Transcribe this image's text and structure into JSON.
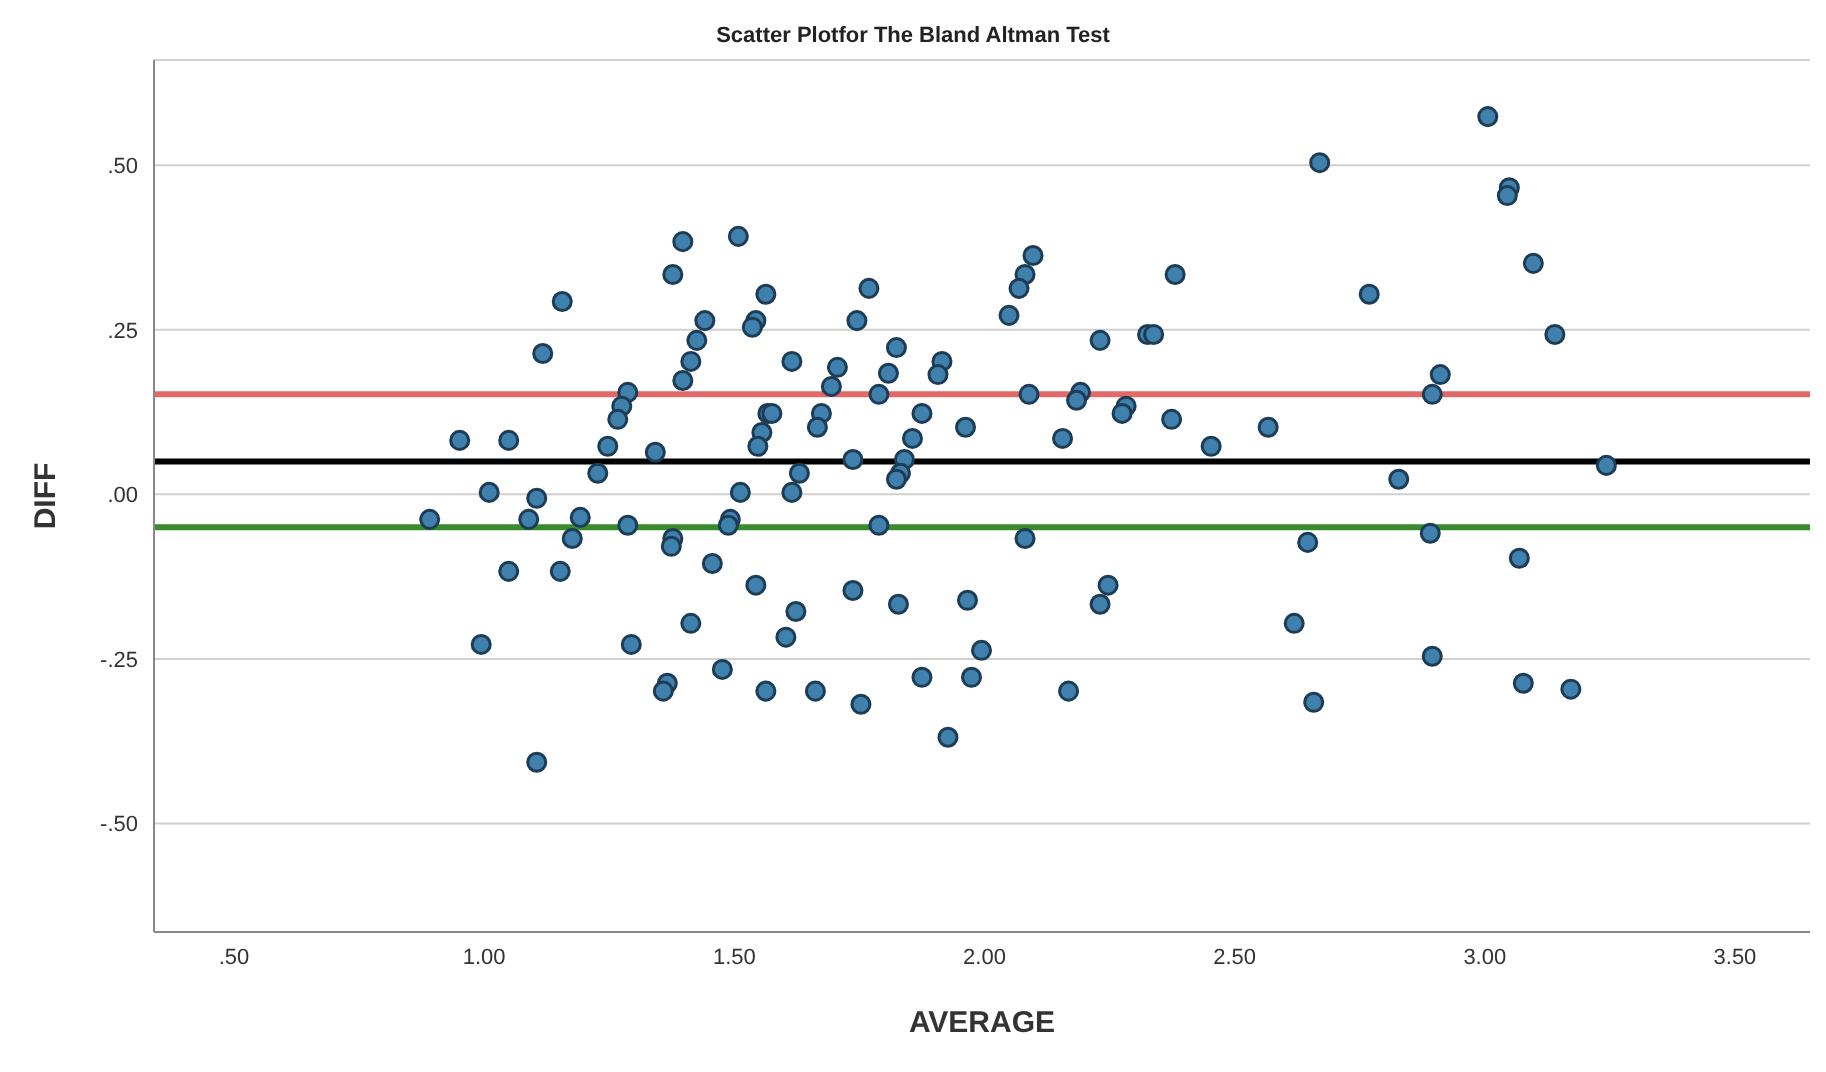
{
  "chart_data": {
    "type": "scatter",
    "title": "Scatter Plotfor The Bland Altman Test",
    "xlabel": "AVERAGE",
    "ylabel": "DIFF",
    "xlim": [
      0.34,
      3.65
    ],
    "ylim": [
      -0.665,
      0.66
    ],
    "xticks": [
      {
        "value": 0.5,
        "label": ".50"
      },
      {
        "value": 1,
        "label": "1.00"
      },
      {
        "value": 1.5,
        "label": "1.50"
      },
      {
        "value": 2,
        "label": "2.00"
      },
      {
        "value": 2.5,
        "label": "2.50"
      },
      {
        "value": 3,
        "label": "3.00"
      },
      {
        "value": 3.5,
        "label": "3.50"
      }
    ],
    "yticks": [
      {
        "value": -0.5,
        "label": "-.50"
      },
      {
        "value": -0.25,
        "label": "-.25"
      },
      {
        "value": 0,
        "label": ".00"
      },
      {
        "value": 0.25,
        "label": ".25"
      },
      {
        "value": 0.5,
        "label": ".50"
      }
    ],
    "grid": "y",
    "marker": "circle",
    "legend": false,
    "ref_lines": [
      {
        "axis": "y",
        "value": 0.152,
        "label": null,
        "color": "#e06a6a"
      },
      {
        "axis": "y",
        "value": 0.05,
        "label": null,
        "color": "#000000"
      },
      {
        "axis": "y",
        "value": -0.05,
        "label": null,
        "color": "#3a8a2e"
      }
    ],
    "series": [
      {
        "color": "#3f80ad",
        "x": [
          1.397,
          1.508,
          1.377,
          1.156,
          1.563,
          1.441,
          1.543,
          1.536,
          1.425,
          1.117,
          1.413,
          1.397,
          1.287,
          1.275,
          1.267,
          1.567,
          1.555,
          1.547,
          0.951,
          1.049,
          1.247,
          1.342,
          1.227,
          1.01,
          1.105,
          1.512,
          0.891,
          1.089,
          1.192,
          1.287,
          1.492,
          1.488,
          1.176,
          1.377,
          1.374,
          1.049,
          1.152,
          1.456,
          1.543,
          1.413,
          0.994,
          1.294,
          1.476,
          1.366,
          1.358,
          1.563,
          1.105,
          2.097,
          2.081,
          2.069,
          1.769,
          2.049,
          1.745,
          2.326,
          2.231,
          1.824,
          1.615,
          1.706,
          1.915,
          1.808,
          1.907,
          1.694,
          1.789,
          2.089,
          2.192,
          2.184,
          2.283,
          2.275,
          1.575,
          1.674,
          1.666,
          1.875,
          1.962,
          2.156,
          1.856,
          1.737,
          1.84,
          1.832,
          1.824,
          1.63,
          1.615,
          1.789,
          2.081,
          1.737,
          1.828,
          1.966,
          2.247,
          2.231,
          1.623,
          1.603,
          1.994,
          1.875,
          1.974,
          1.662,
          2.168,
          1.753,
          1.927,
          3.006,
          2.67,
          3.049,
          3.045,
          2.381,
          2.769,
          3.097,
          2.338,
          3.14,
          2.911,
          2.895,
          2.374,
          2.567,
          2.453,
          2.828,
          3.243,
          2.646,
          2.891,
          3.069,
          2.619,
          2.895,
          3.077,
          3.172,
          2.658
        ],
        "values": [
          0.384,
          0.392,
          0.334,
          0.293,
          0.304,
          0.264,
          0.264,
          0.254,
          0.234,
          0.214,
          0.202,
          0.173,
          0.155,
          0.134,
          0.114,
          0.123,
          0.094,
          0.073,
          0.082,
          0.082,
          0.073,
          0.064,
          0.032,
          0.003,
          -0.006,
          0.003,
          -0.038,
          -0.038,
          -0.035,
          -0.047,
          -0.038,
          -0.047,
          -0.067,
          -0.067,
          -0.079,
          -0.117,
          -0.117,
          -0.105,
          -0.138,
          -0.196,
          -0.228,
          -0.228,
          -0.266,
          -0.287,
          -0.299,
          -0.299,
          -0.407,
          0.363,
          0.334,
          0.313,
          0.313,
          0.272,
          0.264,
          0.243,
          0.234,
          0.223,
          0.202,
          0.193,
          0.202,
          0.184,
          0.182,
          0.164,
          0.152,
          0.152,
          0.155,
          0.143,
          0.134,
          0.123,
          0.123,
          0.123,
          0.102,
          0.123,
          0.102,
          0.085,
          0.085,
          0.053,
          0.053,
          0.032,
          0.023,
          0.032,
          0.003,
          -0.047,
          -0.067,
          -0.146,
          -0.167,
          -0.161,
          -0.138,
          -0.167,
          -0.178,
          -0.217,
          -0.237,
          -0.278,
          -0.278,
          -0.299,
          -0.299,
          -0.319,
          -0.369,
          0.574,
          0.504,
          0.466,
          0.454,
          0.334,
          0.304,
          0.351,
          0.243,
          0.243,
          0.182,
          0.152,
          0.114,
          0.102,
          0.073,
          0.023,
          0.044,
          -0.073,
          -0.059,
          -0.097,
          -0.196,
          -0.246,
          -0.287,
          -0.296,
          -0.316
        ]
      }
    ]
  }
}
